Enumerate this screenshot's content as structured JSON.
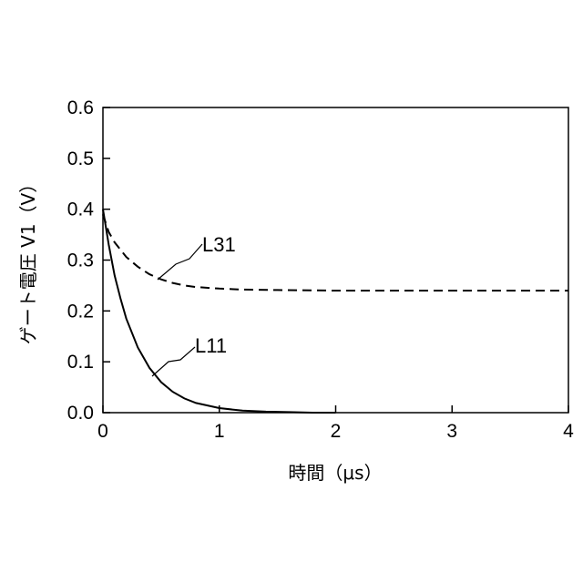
{
  "chart_data": {
    "type": "line",
    "xlabel": "時間（μs）",
    "ylabel": "ゲート電圧 V1（V）",
    "xlim": [
      0,
      4
    ],
    "ylim": [
      0,
      0.6
    ],
    "x_ticks": [
      "0",
      "1",
      "2",
      "3",
      "4"
    ],
    "y_ticks": [
      "0.0",
      "0.1",
      "0.2",
      "0.3",
      "0.4",
      "0.5",
      "0.6"
    ],
    "grid": false,
    "legend": "none",
    "series": [
      {
        "name": "L31",
        "style": "dashed",
        "color": "#000000",
        "x": [
          0,
          0.05,
          0.1,
          0.2,
          0.3,
          0.4,
          0.5,
          0.6,
          0.7,
          0.8,
          1.0,
          1.2,
          1.5,
          2.0,
          2.5,
          3.0,
          3.5,
          4.0
        ],
        "y": [
          0.39,
          0.355,
          0.335,
          0.306,
          0.287,
          0.272,
          0.262,
          0.255,
          0.25,
          0.247,
          0.244,
          0.242,
          0.241,
          0.24,
          0.24,
          0.24,
          0.24,
          0.24
        ]
      },
      {
        "name": "L11",
        "style": "solid",
        "color": "#000000",
        "x": [
          0,
          0.05,
          0.1,
          0.15,
          0.2,
          0.3,
          0.4,
          0.5,
          0.6,
          0.7,
          0.8,
          1.0,
          1.2,
          1.4,
          1.6,
          1.8,
          2.0
        ],
        "y": [
          0.4,
          0.33,
          0.27,
          0.225,
          0.185,
          0.128,
          0.088,
          0.06,
          0.041,
          0.028,
          0.019,
          0.009,
          0.004,
          0.002,
          0.001,
          0.0,
          0.0
        ]
      }
    ]
  }
}
